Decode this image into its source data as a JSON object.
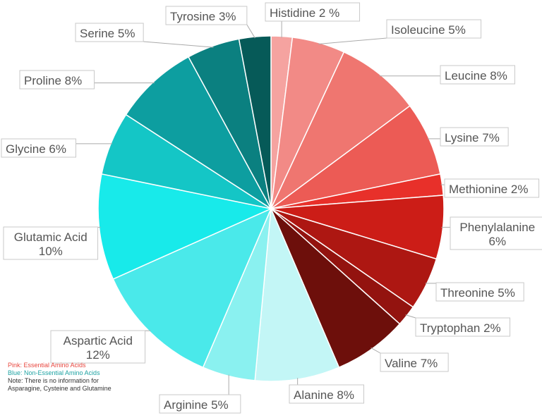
{
  "chart_data": {
    "type": "pie",
    "start": "12 o'clock",
    "direction": "clockwise",
    "slices": [
      {
        "name": "Histidine",
        "value": 2,
        "label": "Histidine 2 %",
        "color": "#f5a3a0",
        "group": "essential"
      },
      {
        "name": "Isoleucine",
        "value": 5,
        "label": "Isoleucine 5%",
        "color": "#f28a86",
        "group": "essential"
      },
      {
        "name": "Leucine",
        "value": 8,
        "label": "Leucine 8%",
        "color": "#ef7670",
        "group": "essential"
      },
      {
        "name": "Lysine",
        "value": 7,
        "label": "Lysine 7%",
        "color": "#ec5b55",
        "group": "essential"
      },
      {
        "name": "Methionine",
        "value": 2,
        "label": "Methionine 2%",
        "color": "#e8302a",
        "group": "essential"
      },
      {
        "name": "Phenylalanine",
        "value": 6,
        "label": "Phenylalanine\n6%",
        "color": "#cc1d17",
        "group": "essential"
      },
      {
        "name": "Threonine",
        "value": 5,
        "label": "Threonine 5%",
        "color": "#ad1712",
        "group": "essential"
      },
      {
        "name": "Tryptophan",
        "value": 2,
        "label": "Tryptophan 2%",
        "color": "#93130f",
        "group": "essential"
      },
      {
        "name": "Valine",
        "value": 7,
        "label": "Valine 7%",
        "color": "#6d0f0b",
        "group": "essential"
      },
      {
        "name": "Alanine",
        "value": 8,
        "label": "Alanine 8%",
        "color": "#c3f6f6",
        "group": "non-essential"
      },
      {
        "name": "Arginine",
        "value": 5,
        "label": "Arginine 5%",
        "color": "#8af1f0",
        "group": "non-essential"
      },
      {
        "name": "Aspartic Acid",
        "value": 12,
        "label": "Aspartic Acid\n12%",
        "color": "#4ae9ea",
        "group": "non-essential"
      },
      {
        "name": "Glutamic Acid",
        "value": 10,
        "label": "Glutamic Acid\n10%",
        "color": "#18eaea",
        "group": "non-essential"
      },
      {
        "name": "Glycine",
        "value": 6,
        "label": "Glycine 6%",
        "color": "#14c6c6",
        "group": "non-essential"
      },
      {
        "name": "Proline",
        "value": 8,
        "label": "Proline 8%",
        "color": "#0d9ea0",
        "group": "non-essential"
      },
      {
        "name": "Serine",
        "value": 5,
        "label": "Serine 5%",
        "color": "#0b8080",
        "group": "non-essential"
      },
      {
        "name": "Tyrosine",
        "value": 3,
        "label": "Tyrosine 3%",
        "color": "#065a58",
        "group": "non-essential"
      }
    ],
    "legend_placement": "bottom-left",
    "legend": {
      "essential": "Pink: Essential Amino Acids",
      "non_essential": "Blue: Non-Essential Amino Acids",
      "note": "Note: There is no information for Asparagine, Cysteine and Glutamine"
    },
    "colors": {
      "essential_text": "#e8473f",
      "non_essential_text": "#1fa3a3",
      "label_border": "#c9c9c9",
      "label_text": "#555555",
      "leader_line": "#aaaaaa"
    }
  }
}
